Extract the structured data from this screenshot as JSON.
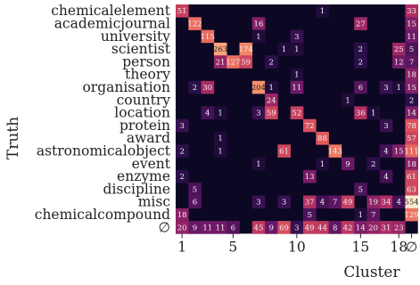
{
  "chart_data": {
    "type": "heatmap",
    "xlabel": "Cluster",
    "ylabel": "Truth",
    "rows": [
      "chemicalelement",
      "academicjournal",
      "university",
      "scientist",
      "person",
      "theory",
      "organisation",
      "country",
      "location",
      "protein",
      "award",
      "astronomicalobject",
      "event",
      "enzyme",
      "discipline",
      "misc",
      "chemicalcompound",
      "∅"
    ],
    "columns": [
      "1",
      "2",
      "3",
      "4",
      "5",
      "6",
      "7",
      "8",
      "9",
      "10",
      "11",
      "12",
      "13",
      "14",
      "15",
      "16",
      "17",
      "18",
      "∅"
    ],
    "x_ticks": [
      {
        "col": 0,
        "label": "1"
      },
      {
        "col": 4,
        "label": "5"
      },
      {
        "col": 9,
        "label": "10"
      },
      {
        "col": 14,
        "label": "15"
      },
      {
        "col": 17,
        "label": "18"
      },
      {
        "col": 18,
        "label": "∅"
      }
    ],
    "values": [
      [
        51,
        0,
        0,
        0,
        0,
        0,
        0,
        0,
        0,
        0,
        0,
        1,
        0,
        0,
        0,
        0,
        0,
        0,
        33
      ],
      [
        0,
        122,
        0,
        0,
        0,
        0,
        16,
        0,
        0,
        0,
        0,
        0,
        0,
        0,
        27,
        0,
        0,
        0,
        15
      ],
      [
        0,
        0,
        115,
        0,
        0,
        0,
        1,
        0,
        0,
        3,
        0,
        0,
        0,
        0,
        0,
        0,
        0,
        0,
        11
      ],
      [
        0,
        0,
        0,
        263,
        0,
        174,
        0,
        0,
        1,
        1,
        0,
        0,
        0,
        0,
        2,
        0,
        0,
        25,
        5
      ],
      [
        0,
        0,
        0,
        21,
        127,
        59,
        0,
        2,
        0,
        0,
        0,
        0,
        0,
        0,
        2,
        0,
        0,
        12,
        7
      ],
      [
        0,
        0,
        0,
        0,
        0,
        0,
        0,
        0,
        0,
        1,
        0,
        0,
        0,
        0,
        0,
        0,
        0,
        0,
        18
      ],
      [
        0,
        2,
        30,
        0,
        0,
        0,
        204,
        1,
        0,
        11,
        0,
        0,
        0,
        0,
        6,
        0,
        3,
        1,
        15
      ],
      [
        0,
        0,
        0,
        0,
        0,
        0,
        0,
        24,
        0,
        0,
        0,
        0,
        0,
        1,
        0,
        0,
        0,
        0,
        2
      ],
      [
        0,
        0,
        4,
        1,
        0,
        0,
        3,
        59,
        0,
        52,
        0,
        0,
        0,
        0,
        36,
        1,
        0,
        0,
        14
      ],
      [
        3,
        0,
        0,
        0,
        0,
        0,
        0,
        0,
        0,
        0,
        72,
        0,
        0,
        0,
        0,
        0,
        3,
        0,
        78
      ],
      [
        0,
        0,
        0,
        1,
        0,
        0,
        0,
        0,
        0,
        0,
        0,
        88,
        0,
        0,
        0,
        0,
        0,
        0,
        57
      ],
      [
        2,
        0,
        0,
        1,
        0,
        0,
        0,
        0,
        61,
        0,
        0,
        0,
        143,
        0,
        0,
        0,
        4,
        15,
        111
      ],
      [
        0,
        0,
        0,
        0,
        0,
        0,
        1,
        0,
        0,
        0,
        0,
        1,
        0,
        9,
        0,
        2,
        0,
        0,
        18
      ],
      [
        2,
        0,
        0,
        0,
        0,
        0,
        0,
        0,
        0,
        0,
        13,
        0,
        0,
        0,
        0,
        0,
        4,
        0,
        61
      ],
      [
        0,
        5,
        0,
        0,
        0,
        0,
        0,
        0,
        0,
        0,
        0,
        0,
        0,
        0,
        5,
        0,
        0,
        0,
        63
      ],
      [
        0,
        6,
        0,
        0,
        0,
        0,
        3,
        0,
        3,
        0,
        37,
        4,
        7,
        49,
        0,
        19,
        34,
        4,
        554
      ],
      [
        18,
        0,
        0,
        0,
        0,
        0,
        0,
        0,
        0,
        0,
        5,
        0,
        0,
        0,
        1,
        7,
        0,
        0,
        129
      ],
      [
        20,
        9,
        11,
        11,
        6,
        0,
        45,
        9,
        69,
        3,
        49,
        44,
        8,
        42,
        14,
        20,
        31,
        23,
        0
      ]
    ]
  }
}
